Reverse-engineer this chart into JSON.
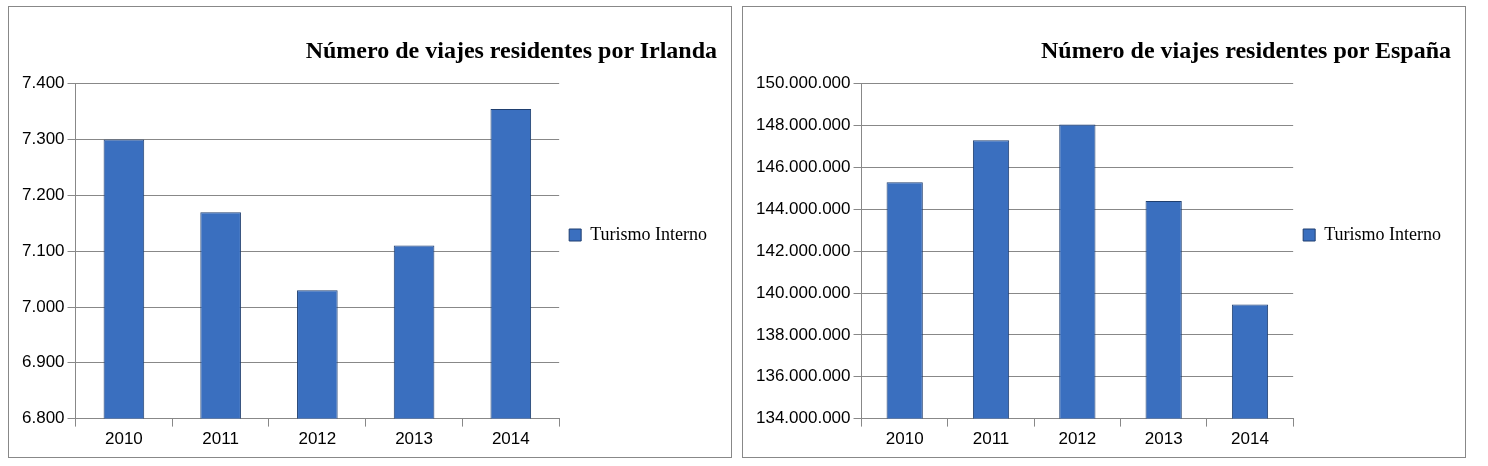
{
  "chart_data": [
    {
      "type": "bar",
      "title": "Número de viajes residentes por Irlanda",
      "categories": [
        "2010",
        "2011",
        "2012",
        "2013",
        "2014"
      ],
      "series": [
        {
          "name": "Turismo Interno",
          "color": "#3a6fbf",
          "values": [
            7300,
            7170,
            7030,
            7110,
            7355
          ]
        }
      ],
      "ylim": [
        6800,
        7400
      ],
      "yticks": [
        {
          "value": 6800,
          "label": "6.800"
        },
        {
          "value": 6900,
          "label": "6.900"
        },
        {
          "value": 7000,
          "label": "7.000"
        },
        {
          "value": 7100,
          "label": "7.100"
        },
        {
          "value": 7200,
          "label": "7.200"
        },
        {
          "value": 7300,
          "label": "7.300"
        },
        {
          "value": 7400,
          "label": "7.400"
        }
      ],
      "grid": "y",
      "legend": "right"
    },
    {
      "type": "bar",
      "title": "Número de viajes residentes por España",
      "categories": [
        "2010",
        "2011",
        "2012",
        "2013",
        "2014"
      ],
      "series": [
        {
          "name": "Turismo Interno",
          "color": "#3a6fbf",
          "values": [
            145300000,
            147300000,
            148050000,
            144400000,
            139450000
          ]
        }
      ],
      "ylim": [
        134000000,
        150000000
      ],
      "yticks": [
        {
          "value": 134000000,
          "label": "134.000.000"
        },
        {
          "value": 136000000,
          "label": "136.000.000"
        },
        {
          "value": 138000000,
          "label": "138.000.000"
        },
        {
          "value": 140000000,
          "label": "140.000.000"
        },
        {
          "value": 142000000,
          "label": "142.000.000"
        },
        {
          "value": 144000000,
          "label": "144.000.000"
        },
        {
          "value": 146000000,
          "label": "146.000.000"
        },
        {
          "value": 148000000,
          "label": "148.000.000"
        },
        {
          "value": 150000000,
          "label": "150.000.000"
        }
      ],
      "grid": "y",
      "legend": "right"
    }
  ]
}
